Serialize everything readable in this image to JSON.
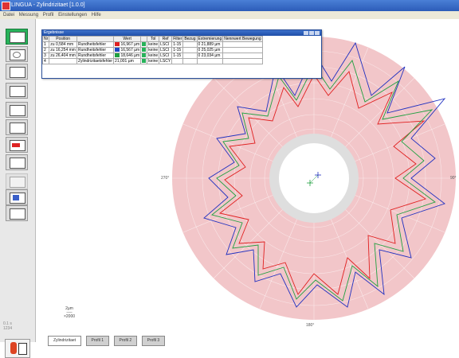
{
  "window": {
    "title": "LINGUA - Zylindrizitaet [1.0.0]"
  },
  "menubar": {
    "items": [
      "Datei",
      "Messung",
      "Profil",
      "Einstellungen",
      "Hilfe"
    ]
  },
  "toolbar": {
    "buttons": [
      {
        "name": "evaluation-view",
        "icon": "screen-icon",
        "active": true
      },
      {
        "name": "zoom",
        "icon": "magnifier-icon"
      },
      {
        "name": "filter",
        "icon": "filter-icon"
      },
      {
        "name": "profile-view",
        "icon": "profile-icon"
      },
      {
        "name": "print",
        "icon": "print-icon"
      },
      {
        "name": "export",
        "icon": "export-icon"
      },
      {
        "name": "table",
        "icon": "table-icon"
      },
      {
        "name": "record",
        "icon": "record-icon"
      },
      {
        "name": "report",
        "icon": "report-icon"
      },
      {
        "name": "settings-dim",
        "icon": "settings-icon"
      },
      {
        "name": "save",
        "icon": "save-icon"
      },
      {
        "name": "compare",
        "icon": "compare-icon"
      }
    ],
    "mini_label": "0.1 s\n1234"
  },
  "results": {
    "title": "Ergebnisse",
    "headers": [
      "Nr",
      "Position",
      "",
      "Wert",
      "",
      "Tol",
      "Ref",
      "Filter",
      "Bezug",
      "Extremierung",
      "Nennwert Bewegung"
    ],
    "rows": [
      {
        "nr": "1",
        "pos_sym": "zu",
        "position": "0,584 mm",
        "param": "Rundheitsfehler",
        "color": "#e02020",
        "value": "16,967 µm",
        "tol": "keine",
        "ref": "LSCI",
        "filter": "1-15",
        "extrem": "0",
        "ext_val": "21,889 µm"
      },
      {
        "nr": "2",
        "pos_sym": "zu",
        "position": "16,254 mm",
        "param": "Rundheitsfehler",
        "color": "#1f48c4",
        "value": "16,567 µm",
        "tol": "keine",
        "ref": "LSCI",
        "filter": "1-15",
        "extrem": "0",
        "ext_val": "25,025 µm"
      },
      {
        "nr": "3",
        "pos_sym": "zu",
        "position": "26,404 mm",
        "param": "Rundheitsfehler",
        "color": "#20a040",
        "value": "18,646 µm",
        "tol": "keine",
        "ref": "LSCI",
        "filter": "1-15",
        "extrem": "0",
        "ext_val": "23,034 µm"
      },
      {
        "nr": "4",
        "pos_sym": "",
        "position": "",
        "param": "Zylindrizitaetsfehler",
        "color": "",
        "value": "21,001 µm",
        "tol": "keine",
        "ref": "LSCY",
        "filter": "",
        "extrem": "",
        "ext_val": ""
      }
    ]
  },
  "polar": {
    "angle_labels": [
      "0°",
      "90°",
      "180°",
      "270°"
    ],
    "colors": {
      "band": "#f2c6c9",
      "inner_gray": "#e0e0e0",
      "red": "#e02020",
      "blue": "#2030c0",
      "green": "#20a040"
    }
  },
  "scale": {
    "label": "2µm\n──\n×2000"
  },
  "tabs": [
    {
      "label": "Zylindrizitaet",
      "active": true
    },
    {
      "label": "Profil 1"
    },
    {
      "label": "Profil 2"
    },
    {
      "label": "Profil 3"
    }
  ]
}
